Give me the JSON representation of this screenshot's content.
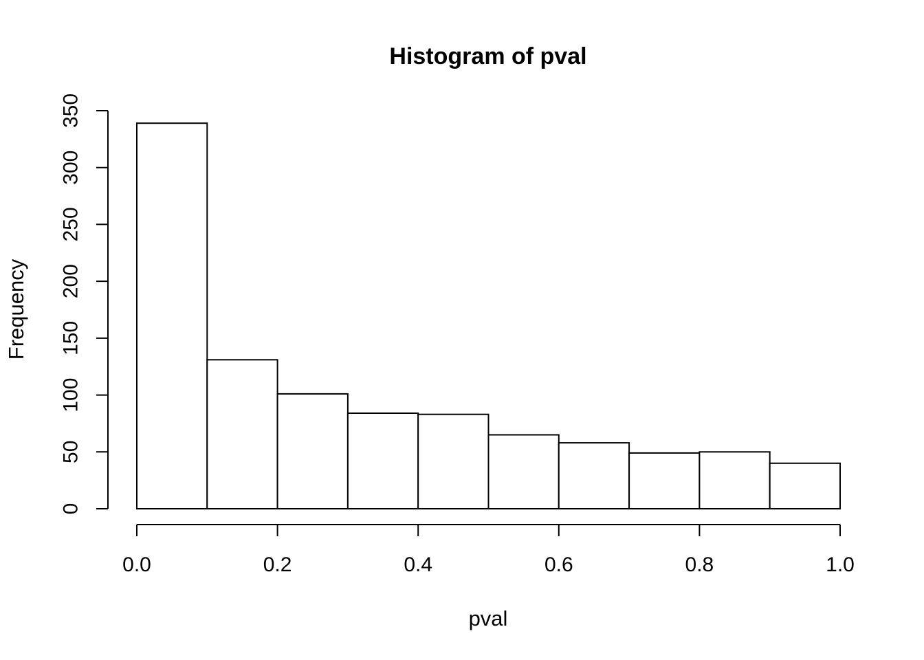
{
  "page": {
    "background": "#ffffff"
  },
  "chart_data": {
    "type": "bar",
    "subtype": "histogram",
    "title": "Histogram of pval",
    "xlabel": "pval",
    "ylabel": "Frequency",
    "breaks": [
      0.0,
      0.1,
      0.2,
      0.3,
      0.4,
      0.5,
      0.6,
      0.7,
      0.8,
      0.9,
      1.0
    ],
    "counts": [
      339,
      131,
      101,
      84,
      83,
      65,
      58,
      49,
      50,
      40
    ],
    "xlim": [
      0.0,
      1.0
    ],
    "ylim": [
      0,
      350
    ],
    "x_ticks": {
      "values": [
        0.0,
        0.2,
        0.4,
        0.6,
        0.8,
        1.0
      ],
      "labels": [
        "0.0",
        "0.2",
        "0.4",
        "0.6",
        "0.8",
        "1.0"
      ]
    },
    "y_ticks": {
      "values": [
        0,
        50,
        100,
        150,
        200,
        250,
        300,
        350
      ],
      "labels": [
        "0",
        "50",
        "100",
        "150",
        "200",
        "250",
        "300",
        "350"
      ]
    },
    "grid": false,
    "legend": "none",
    "colors": {
      "bar_fill": "#ffffff",
      "stroke": "#000000",
      "background": "#ffffff"
    }
  }
}
